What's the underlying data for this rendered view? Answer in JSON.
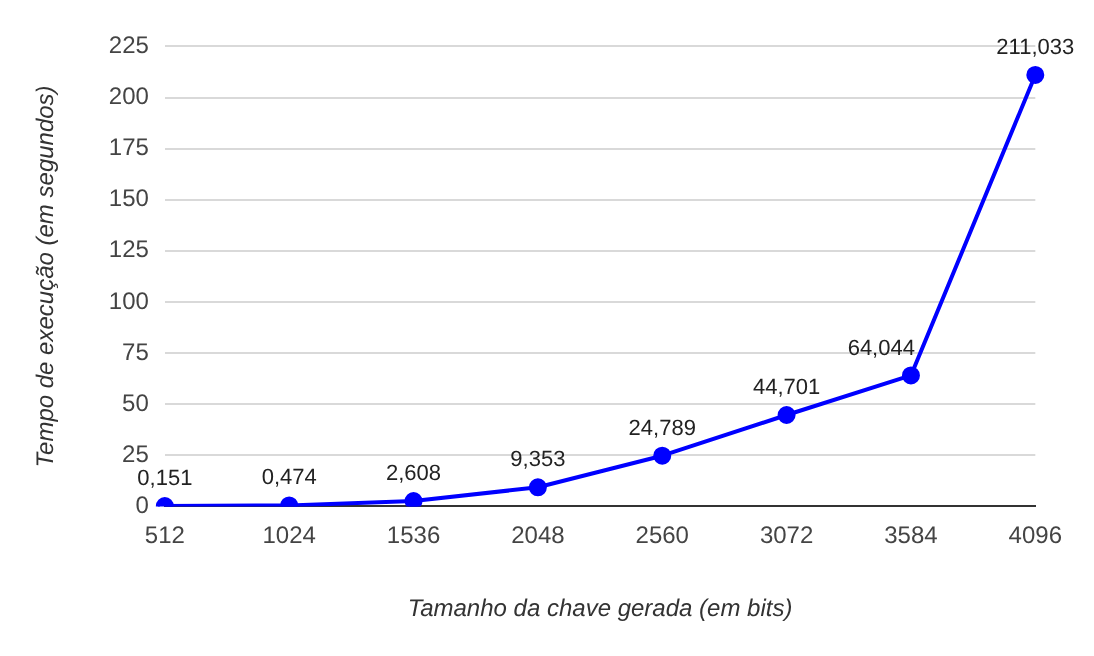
{
  "chart_data": {
    "type": "line",
    "xlabel": "Tamanho da chave gerada (em bits)",
    "ylabel": "Tempo de execução (em segundos)",
    "categories": [
      "512",
      "1024",
      "1536",
      "2048",
      "2560",
      "3072",
      "3584",
      "4096"
    ],
    "series": [
      {
        "color": "#0000ff",
        "values": [
          0.151,
          0.474,
          2.608,
          9.353,
          24.789,
          44.701,
          64.044,
          211.033
        ]
      }
    ],
    "value_labels": [
      "0,151",
      "0,474",
      "2,608",
      "9,353",
      "24,789",
      "44,701",
      "64,044",
      "211,033"
    ],
    "ylim": [
      0,
      225
    ],
    "yticks": [
      0,
      25,
      50,
      75,
      100,
      125,
      150,
      175,
      200,
      225
    ],
    "grid": "y",
    "legend": false,
    "marker": "circle",
    "line_style": "solid"
  }
}
